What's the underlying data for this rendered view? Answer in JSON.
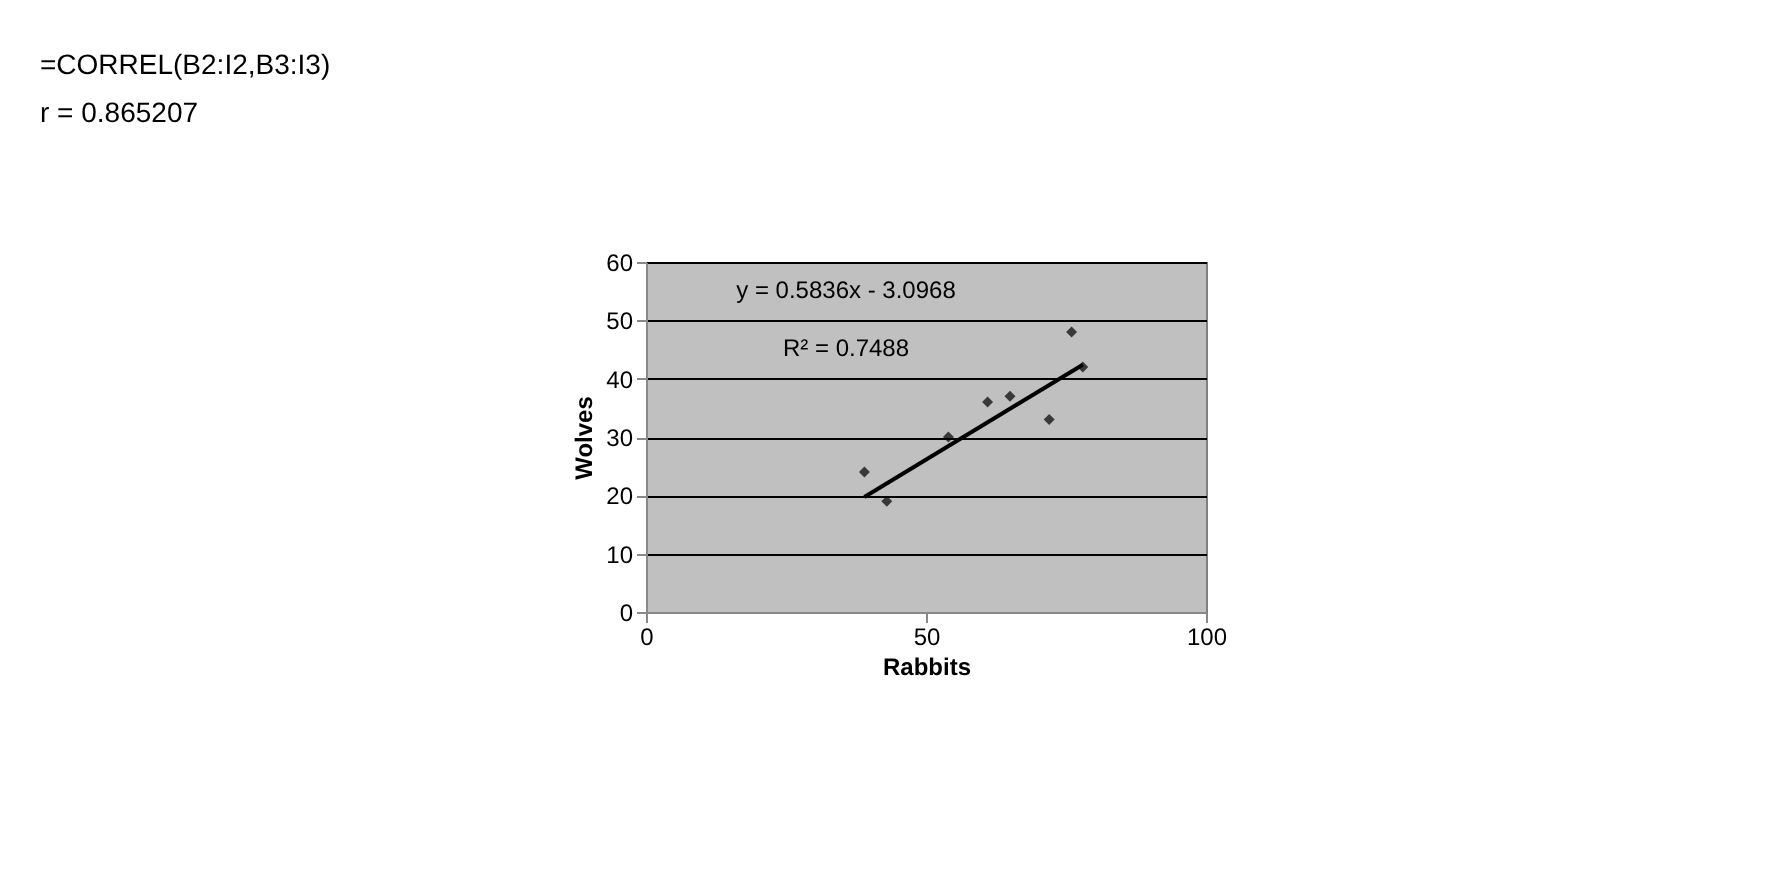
{
  "chart_data": {
    "type": "scatter",
    "xlabel": "Rabbits",
    "ylabel": "Wolves",
    "series": [
      {
        "marker": "diamond",
        "color": "#000000",
        "x": [
          61,
          72,
          78,
          76,
          65,
          54,
          39,
          43
        ],
        "values": [
          36,
          33,
          42,
          48,
          37,
          30,
          24,
          19
        ]
      },
      {
        "type": "line",
        "color": "#000000",
        "x": [
          39,
          78
        ],
        "values": [
          19.7,
          42.4
        ]
      }
    ],
    "xlim": [
      0,
      100
    ],
    "xticks": [
      0,
      50,
      100
    ],
    "ylim": [
      0,
      60
    ],
    "yticks": [
      0,
      10,
      20,
      30,
      40,
      50,
      60
    ],
    "grid": "y",
    "annotations": [
      "y = 0.5836x - 3.0968",
      "R² = 0.7488",
      "=CORREL(B2:I2,B3:I3)",
      "r = 0.865207"
    ]
  }
}
